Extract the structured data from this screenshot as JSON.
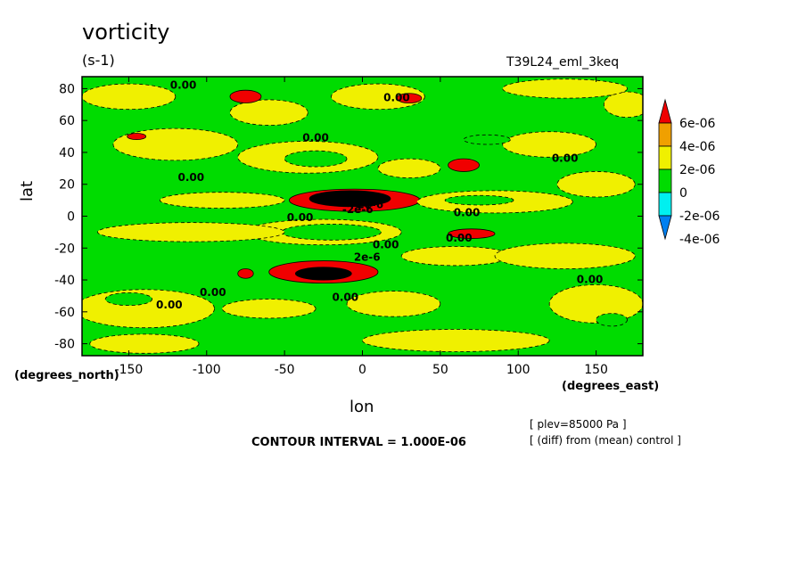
{
  "header": {
    "title": "vorticity",
    "units": "(s-1)",
    "run_name": "T39L24_eml_3keq"
  },
  "axes": {
    "ylabel": "lat",
    "ytick_unit": "(degrees_north)",
    "xlabel": "lon",
    "xtick_unit": "(degrees_east)"
  },
  "footer": {
    "contour_interval": "CONTOUR INTERVAL = 1.000E-06",
    "note_level": "[ plev=85000 Pa ]",
    "note_diff": "[ (diff) from (mean) control ]"
  },
  "colors": {
    "red": "#f00000",
    "orange": "#f0a000",
    "yellow": "#f0f000",
    "green": "#00dc00",
    "cyan": "#00f0f0",
    "blue": "#0080f0"
  },
  "chart_data": {
    "type": "heatmap",
    "xlim": [
      -180,
      180
    ],
    "ylim": [
      -87.5,
      87.5
    ],
    "xticks": [
      -150,
      -100,
      -50,
      0,
      50,
      100,
      150
    ],
    "xtick_labels": [
      "-150",
      "-100",
      "-50",
      "0",
      "50",
      "100",
      "150"
    ],
    "yticks": [
      -80,
      -60,
      -40,
      -20,
      0,
      20,
      40,
      60,
      80
    ],
    "ytick_labels": [
      "-80",
      "-60",
      "-40",
      "-20",
      "0",
      "20",
      "40",
      "60",
      "80"
    ],
    "colorbar": {
      "boundaries": [
        -4e-06,
        -2e-06,
        0,
        2e-06,
        4e-06,
        6e-06
      ],
      "labels": [
        "6e-06",
        "4e-06",
        "2e-06",
        "0",
        "-2e-06",
        "-4e-06"
      ],
      "colors": [
        "#0080f0",
        "#00f0f0",
        "#00dc00",
        "#f0f000",
        "#f0a000",
        "#f00000"
      ]
    },
    "background_level": 0,
    "features": [
      {
        "lon": -5,
        "lat": 10,
        "rx": 42,
        "ry": 7,
        "level": 3
      },
      {
        "lon": -8,
        "lat": 11,
        "rx": 26,
        "ry": 5,
        "level": 4
      },
      {
        "lon": -8,
        "lat": 10,
        "rx": 10,
        "ry": 3,
        "level": 5
      },
      {
        "lon": -25,
        "lat": -10,
        "rx": 50,
        "ry": 8,
        "level": 1
      },
      {
        "lon": -20,
        "lat": -10,
        "rx": 32,
        "ry": 5,
        "level": 0
      },
      {
        "lon": -25,
        "lat": -35,
        "rx": 35,
        "ry": 7,
        "level": 3
      },
      {
        "lon": -25,
        "lat": -36,
        "rx": 18,
        "ry": 4,
        "level": 4
      },
      {
        "lon": -35,
        "lat": 37,
        "rx": 45,
        "ry": 10,
        "level": 1
      },
      {
        "lon": -30,
        "lat": 36,
        "rx": 20,
        "ry": 5,
        "level": 0
      },
      {
        "lon": 85,
        "lat": 9,
        "rx": 50,
        "ry": 7,
        "level": 1
      },
      {
        "lon": 75,
        "lat": 10,
        "rx": 22,
        "ry": 3,
        "level": 0
      },
      {
        "lon": -120,
        "lat": 45,
        "rx": 40,
        "ry": 10,
        "level": 1
      },
      {
        "lon": -150,
        "lat": 75,
        "rx": 30,
        "ry": 8,
        "level": 1
      },
      {
        "lon": -60,
        "lat": 65,
        "rx": 25,
        "ry": 8,
        "level": 1
      },
      {
        "lon": -90,
        "lat": 10,
        "rx": 40,
        "ry": 5,
        "level": 1
      },
      {
        "lon": 30,
        "lat": 30,
        "rx": 20,
        "ry": 6,
        "level": 1
      },
      {
        "lon": 120,
        "lat": 45,
        "rx": 30,
        "ry": 8,
        "level": 1
      },
      {
        "lon": 150,
        "lat": 20,
        "rx": 25,
        "ry": 8,
        "level": 1
      },
      {
        "lon": 170,
        "lat": 70,
        "rx": 15,
        "ry": 8,
        "level": 1
      },
      {
        "lon": -110,
        "lat": -10,
        "rx": 60,
        "ry": 6,
        "level": 1
      },
      {
        "lon": 60,
        "lat": -25,
        "rx": 35,
        "ry": 6,
        "level": 1
      },
      {
        "lon": 130,
        "lat": -25,
        "rx": 45,
        "ry": 8,
        "level": 1
      },
      {
        "lon": -140,
        "lat": -58,
        "rx": 45,
        "ry": 12,
        "level": 1
      },
      {
        "lon": -150,
        "lat": -52,
        "rx": 15,
        "ry": 4,
        "level": 0
      },
      {
        "lon": -60,
        "lat": -58,
        "rx": 30,
        "ry": 6,
        "level": 1
      },
      {
        "lon": 20,
        "lat": -55,
        "rx": 30,
        "ry": 8,
        "level": 1
      },
      {
        "lon": 150,
        "lat": -55,
        "rx": 30,
        "ry": 12,
        "level": 1
      },
      {
        "lon": 160,
        "lat": -65,
        "rx": 10,
        "ry": 4,
        "level": 0
      },
      {
        "lon": -140,
        "lat": -80,
        "rx": 35,
        "ry": 6,
        "level": 1
      },
      {
        "lon": 60,
        "lat": -78,
        "rx": 60,
        "ry": 7,
        "level": 1
      },
      {
        "lon": 80,
        "lat": 48,
        "rx": 15,
        "ry": 3,
        "level": 0
      },
      {
        "lon": 10,
        "lat": 75,
        "rx": 30,
        "ry": 8,
        "level": 1
      },
      {
        "lon": 130,
        "lat": 80,
        "rx": 40,
        "ry": 6,
        "level": 1
      },
      {
        "lon": -75,
        "lat": 75,
        "rx": 10,
        "ry": 4,
        "level": 3
      },
      {
        "lon": 30,
        "lat": 74,
        "rx": 8,
        "ry": 3,
        "level": 3
      },
      {
        "lon": -145,
        "lat": 50,
        "rx": 6,
        "ry": 2,
        "level": 3
      },
      {
        "lon": 65,
        "lat": 32,
        "rx": 10,
        "ry": 4,
        "level": 3
      },
      {
        "lon": 70,
        "lat": -11,
        "rx": 15,
        "ry": 3,
        "level": 3
      },
      {
        "lon": -75,
        "lat": -36,
        "rx": 5,
        "ry": 3,
        "level": 3
      }
    ],
    "contour_labels": [
      {
        "lon": -115,
        "lat": 80,
        "text": "0.00"
      },
      {
        "lon": 22,
        "lat": 72,
        "text": "0.00"
      },
      {
        "lon": -30,
        "lat": 47,
        "text": "0.00"
      },
      {
        "lon": 130,
        "lat": 34,
        "text": "0.00"
      },
      {
        "lon": -110,
        "lat": 22,
        "text": "0.00"
      },
      {
        "lon": 5,
        "lat": 5,
        "text": "2e-6"
      },
      {
        "lon": -3,
        "lat": 2,
        "text": "-2e-6"
      },
      {
        "lon": -40,
        "lat": -3,
        "text": "0.00"
      },
      {
        "lon": 67,
        "lat": 0,
        "text": "0.00"
      },
      {
        "lon": 15,
        "lat": -20,
        "text": "0.00"
      },
      {
        "lon": 62,
        "lat": -16,
        "text": "0.00"
      },
      {
        "lon": 3,
        "lat": -28,
        "text": "2e-6"
      },
      {
        "lon": 146,
        "lat": -42,
        "text": "0.00"
      },
      {
        "lon": -96,
        "lat": -50,
        "text": "0.00"
      },
      {
        "lon": -11,
        "lat": -53,
        "text": "0.00"
      },
      {
        "lon": -124,
        "lat": -58,
        "text": "0.00"
      }
    ]
  }
}
